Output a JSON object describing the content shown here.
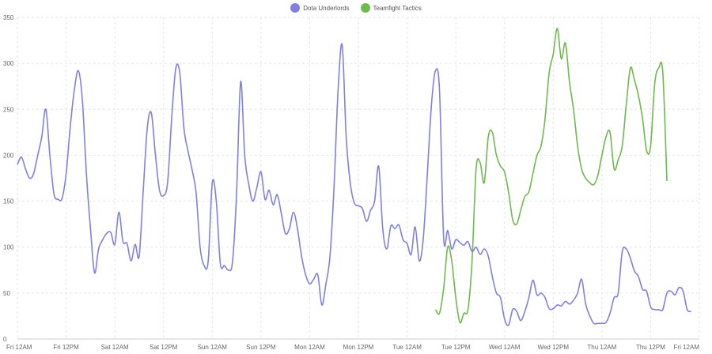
{
  "chart_data": {
    "type": "line",
    "title": "",
    "xlabel": "",
    "ylabel": "",
    "ylim": [
      0,
      350
    ],
    "yticks": [
      0,
      50,
      100,
      150,
      200,
      250,
      300,
      350
    ],
    "xlim": [
      0,
      168
    ],
    "xticks": [
      {
        "x": 0,
        "label": "Fri 12AM"
      },
      {
        "x": 12,
        "label": "Fri 12PM"
      },
      {
        "x": 24,
        "label": "Sat 12AM"
      },
      {
        "x": 36,
        "label": "Sat 12PM"
      },
      {
        "x": 48,
        "label": "Sun 12AM"
      },
      {
        "x": 60,
        "label": "Sun 12PM"
      },
      {
        "x": 72,
        "label": "Mon 12AM"
      },
      {
        "x": 84,
        "label": "Mon 12PM"
      },
      {
        "x": 96,
        "label": "Tue 12AM"
      },
      {
        "x": 108,
        "label": "Tue 12PM"
      },
      {
        "x": 120,
        "label": "Wed 12AM"
      },
      {
        "x": 132,
        "label": "Wed 12PM"
      },
      {
        "x": 144,
        "label": "Thu 12AM"
      },
      {
        "x": 156,
        "label": "Thu 12PM"
      },
      {
        "x": 168,
        "label": "Fri 12AM"
      }
    ],
    "grid": true,
    "legend_position": "top-center",
    "series": [
      {
        "name": "Dota Underlords",
        "color": "#8080e0",
        "points": [
          [
            0,
            190
          ],
          [
            1,
            198
          ],
          [
            2,
            185
          ],
          [
            3,
            175
          ],
          [
            4,
            180
          ],
          [
            5,
            200
          ],
          [
            6,
            220
          ],
          [
            7,
            250
          ],
          [
            8,
            200
          ],
          [
            9,
            158
          ],
          [
            10,
            152
          ],
          [
            11,
            153
          ],
          [
            12,
            180
          ],
          [
            13,
            230
          ],
          [
            14,
            270
          ],
          [
            15,
            292
          ],
          [
            16,
            260
          ],
          [
            17,
            180
          ],
          [
            18,
            120
          ],
          [
            19,
            72
          ],
          [
            20,
            98
          ],
          [
            21,
            108
          ],
          [
            22,
            115
          ],
          [
            23,
            116
          ],
          [
            24,
            103
          ],
          [
            25,
            138
          ],
          [
            26,
            106
          ],
          [
            27,
            104
          ],
          [
            28,
            85
          ],
          [
            29,
            103
          ],
          [
            30,
            90
          ],
          [
            31,
            162
          ],
          [
            32,
            230
          ],
          [
            33,
            246
          ],
          [
            34,
            200
          ],
          [
            35,
            162
          ],
          [
            36,
            156
          ],
          [
            37,
            170
          ],
          [
            38,
            240
          ],
          [
            39,
            294
          ],
          [
            40,
            290
          ],
          [
            41,
            230
          ],
          [
            42,
            205
          ],
          [
            43,
            185
          ],
          [
            44,
            160
          ],
          [
            45,
            100
          ],
          [
            46,
            80
          ],
          [
            47,
            85
          ],
          [
            48,
            170
          ],
          [
            49,
            150
          ],
          [
            50,
            82
          ],
          [
            51,
            80
          ],
          [
            52,
            75
          ],
          [
            53,
            84
          ],
          [
            54,
            160
          ],
          [
            55,
            280
          ],
          [
            56,
            200
          ],
          [
            57,
            168
          ],
          [
            58,
            150
          ],
          [
            59,
            165
          ],
          [
            60,
            182
          ],
          [
            61,
            152
          ],
          [
            62,
            162
          ],
          [
            63,
            146
          ],
          [
            64,
            157
          ],
          [
            65,
            137
          ],
          [
            66,
            115
          ],
          [
            67,
            120
          ],
          [
            68,
            138
          ],
          [
            69,
            120
          ],
          [
            70,
            90
          ],
          [
            71,
            70
          ],
          [
            72,
            60
          ],
          [
            73,
            65
          ],
          [
            74,
            70
          ],
          [
            75,
            37
          ],
          [
            76,
            60
          ],
          [
            77,
            90
          ],
          [
            78,
            165
          ],
          [
            79,
            270
          ],
          [
            80,
            320
          ],
          [
            81,
            220
          ],
          [
            82,
            170
          ],
          [
            83,
            148
          ],
          [
            84,
            145
          ],
          [
            85,
            142
          ],
          [
            86,
            128
          ],
          [
            87,
            140
          ],
          [
            88,
            150
          ],
          [
            89,
            188
          ],
          [
            90,
            120
          ],
          [
            91,
            98
          ],
          [
            92,
            123
          ],
          [
            93,
            120
          ],
          [
            94,
            124
          ],
          [
            95,
            108
          ],
          [
            96,
            104
          ],
          [
            97,
            92
          ],
          [
            98,
            122
          ],
          [
            99,
            85
          ],
          [
            100,
            110
          ],
          [
            101,
            180
          ],
          [
            102,
            255
          ],
          [
            103,
            292
          ],
          [
            104,
            270
          ],
          [
            105,
            110
          ],
          [
            106,
            118
          ],
          [
            107,
            98
          ],
          [
            108,
            108
          ],
          [
            109,
            105
          ],
          [
            110,
            102
          ],
          [
            111,
            106
          ],
          [
            112,
            95
          ],
          [
            113,
            100
          ],
          [
            114,
            92
          ],
          [
            115,
            98
          ],
          [
            116,
            90
          ],
          [
            117,
            68
          ],
          [
            118,
            50
          ],
          [
            119,
            45
          ],
          [
            120,
            22
          ],
          [
            121,
            15
          ],
          [
            122,
            32
          ],
          [
            123,
            30
          ],
          [
            124,
            20
          ],
          [
            125,
            30
          ],
          [
            126,
            45
          ],
          [
            127,
            64
          ],
          [
            128,
            48
          ],
          [
            129,
            50
          ],
          [
            130,
            45
          ],
          [
            131,
            33
          ],
          [
            132,
            33
          ],
          [
            133,
            37
          ],
          [
            134,
            36
          ],
          [
            135,
            41
          ],
          [
            136,
            38
          ],
          [
            137,
            42
          ],
          [
            138,
            50
          ],
          [
            139,
            65
          ],
          [
            140,
            38
          ],
          [
            141,
            25
          ],
          [
            142,
            17
          ],
          [
            143,
            17
          ],
          [
            144,
            17
          ],
          [
            145,
            18
          ],
          [
            146,
            28
          ],
          [
            147,
            45
          ],
          [
            148,
            50
          ],
          [
            149,
            95
          ],
          [
            150,
            98
          ],
          [
            151,
            88
          ],
          [
            152,
            74
          ],
          [
            153,
            68
          ],
          [
            154,
            54
          ],
          [
            155,
            52
          ],
          [
            156,
            35
          ],
          [
            157,
            32
          ],
          [
            158,
            32
          ],
          [
            159,
            32
          ],
          [
            160,
            50
          ],
          [
            161,
            52
          ],
          [
            162,
            48
          ],
          [
            163,
            56
          ],
          [
            164,
            52
          ],
          [
            165,
            32
          ],
          [
            166,
            30
          ]
        ]
      },
      {
        "name": "Teamfight Tactics",
        "color": "#70b850",
        "points": [
          [
            103,
            32
          ],
          [
            104,
            28
          ],
          [
            105,
            55
          ],
          [
            106,
            100
          ],
          [
            107,
            85
          ],
          [
            108,
            45
          ],
          [
            109,
            18
          ],
          [
            110,
            28
          ],
          [
            111,
            32
          ],
          [
            112,
            85
          ],
          [
            113,
            185
          ],
          [
            114,
            192
          ],
          [
            115,
            170
          ],
          [
            116,
            220
          ],
          [
            117,
            225
          ],
          [
            118,
            200
          ],
          [
            119,
            188
          ],
          [
            120,
            182
          ],
          [
            121,
            160
          ],
          [
            122,
            130
          ],
          [
            123,
            125
          ],
          [
            124,
            140
          ],
          [
            125,
            155
          ],
          [
            126,
            160
          ],
          [
            127,
            180
          ],
          [
            128,
            200
          ],
          [
            129,
            210
          ],
          [
            130,
            240
          ],
          [
            131,
            290
          ],
          [
            132,
            310
          ],
          [
            133,
            338
          ],
          [
            134,
            305
          ],
          [
            135,
            322
          ],
          [
            136,
            280
          ],
          [
            137,
            250
          ],
          [
            138,
            210
          ],
          [
            139,
            185
          ],
          [
            140,
            175
          ],
          [
            141,
            170
          ],
          [
            142,
            168
          ],
          [
            143,
            178
          ],
          [
            144,
            200
          ],
          [
            145,
            220
          ],
          [
            146,
            225
          ],
          [
            147,
            185
          ],
          [
            148,
            195
          ],
          [
            149,
            210
          ],
          [
            150,
            255
          ],
          [
            151,
            295
          ],
          [
            152,
            282
          ],
          [
            153,
            265
          ],
          [
            154,
            240
          ],
          [
            155,
            205
          ],
          [
            156,
            210
          ],
          [
            157,
            278
          ],
          [
            158,
            295
          ],
          [
            159,
            290
          ],
          [
            160,
            172
          ]
        ]
      }
    ]
  }
}
